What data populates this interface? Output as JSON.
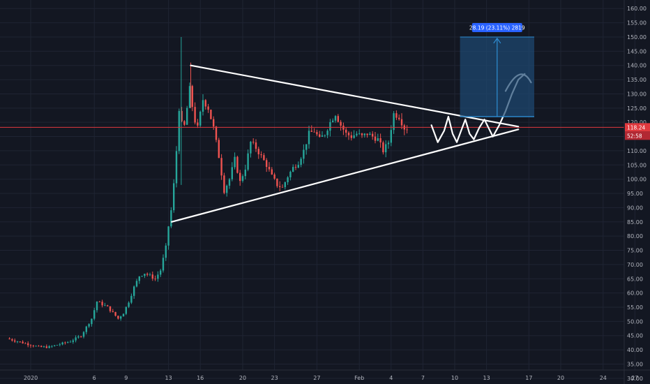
{
  "colors": {
    "background": "#131722",
    "grid": "#1f2433",
    "up": "#26a69a",
    "down": "#ef5350",
    "drawing": "#ffffff",
    "target_box": "#1e4a73",
    "target_line": "#2e8fd6",
    "price_line": "#e0393e"
  },
  "chart_data": {
    "type": "candlestick",
    "title": "",
    "xlabel": "",
    "ylabel": "",
    "ylim": [
      28,
      163
    ],
    "y_ticks": [
      "160.00",
      "155.00",
      "150.00",
      "145.00",
      "140.00",
      "135.00",
      "130.00",
      "125.00",
      "120.00",
      "115.00",
      "110.00",
      "105.00",
      "100.00",
      "95.00",
      "90.00",
      "85.00",
      "80.00",
      "75.00",
      "70.00",
      "65.00",
      "60.00",
      "55.00",
      "50.00",
      "45.00",
      "40.00",
      "35.00",
      "30.00"
    ],
    "x_ticks": [
      "2020",
      "6",
      "9",
      "13",
      "16",
      "20",
      "23",
      "27",
      "Feb",
      "4",
      "7",
      "10",
      "13",
      "17",
      "20",
      "24",
      "27"
    ],
    "price_points": [
      {
        "d": -2,
        "p": 44
      },
      {
        "d": 0,
        "p": 42
      },
      {
        "d": 1,
        "p": 41
      },
      {
        "d": 2,
        "p": 41
      },
      {
        "d": 3,
        "p": 42
      },
      {
        "d": 4,
        "p": 43
      },
      {
        "d": 5,
        "p": 45
      },
      {
        "d": 6,
        "p": 51
      },
      {
        "d": 6.5,
        "p": 57
      },
      {
        "d": 7,
        "p": 56
      },
      {
        "d": 7.5,
        "p": 55
      },
      {
        "d": 8,
        "p": 53
      },
      {
        "d": 8.5,
        "p": 51
      },
      {
        "d": 9,
        "p": 53
      },
      {
        "d": 9.5,
        "p": 57
      },
      {
        "d": 10,
        "p": 62
      },
      {
        "d": 10.5,
        "p": 66
      },
      {
        "d": 11,
        "p": 67
      },
      {
        "d": 11.5,
        "p": 66
      },
      {
        "d": 12,
        "p": 65
      },
      {
        "d": 12.5,
        "p": 68
      },
      {
        "d": 13,
        "p": 76
      },
      {
        "d": 13.3,
        "p": 85
      },
      {
        "d": 13.6,
        "p": 91
      },
      {
        "d": 14,
        "p": 110
      },
      {
        "d": 14.3,
        "p": 128
      },
      {
        "d": 14.6,
        "p": 115
      },
      {
        "d": 15,
        "p": 125
      },
      {
        "d": 15.3,
        "p": 133
      },
      {
        "d": 15.6,
        "p": 122
      },
      {
        "d": 16,
        "p": 118
      },
      {
        "d": 16.5,
        "p": 128
      },
      {
        "d": 17,
        "p": 125
      },
      {
        "d": 17.5,
        "p": 118
      },
      {
        "d": 18,
        "p": 108
      },
      {
        "d": 18.5,
        "p": 96
      },
      {
        "d": 19,
        "p": 100
      },
      {
        "d": 19.5,
        "p": 107
      },
      {
        "d": 20,
        "p": 99
      },
      {
        "d": 20.5,
        "p": 104
      },
      {
        "d": 21,
        "p": 113
      },
      {
        "d": 21.5,
        "p": 111
      },
      {
        "d": 22,
        "p": 108
      },
      {
        "d": 22.5,
        "p": 105
      },
      {
        "d": 23,
        "p": 101
      },
      {
        "d": 23.5,
        "p": 98
      },
      {
        "d": 24,
        "p": 97
      },
      {
        "d": 24.5,
        "p": 101
      },
      {
        "d": 25,
        "p": 104
      },
      {
        "d": 25.5,
        "p": 106
      },
      {
        "d": 26,
        "p": 110
      },
      {
        "d": 26.5,
        "p": 116
      },
      {
        "d": 27,
        "p": 117
      },
      {
        "d": 27.5,
        "p": 114
      },
      {
        "d": 28,
        "p": 116
      },
      {
        "d": 28.5,
        "p": 120
      },
      {
        "d": 29,
        "p": 123
      },
      {
        "d": 29.5,
        "p": 119
      },
      {
        "d": 30,
        "p": 116
      },
      {
        "d": 30.5,
        "p": 115
      },
      {
        "d": 31,
        "p": 116
      },
      {
        "d": 31.5,
        "p": 115
      },
      {
        "d": 32,
        "p": 116
      },
      {
        "d": 32.5,
        "p": 115
      },
      {
        "d": 33,
        "p": 114
      },
      {
        "d": 33.5,
        "p": 110
      },
      {
        "d": 34,
        "p": 113
      },
      {
        "d": 34.5,
        "p": 123
      },
      {
        "d": 35,
        "p": 122
      },
      {
        "d": 35.5,
        "p": 118
      }
    ],
    "current_price": {
      "label": "118.24",
      "countdown": "52:58",
      "value": 118.24
    },
    "trendlines": [
      {
        "x1": 15.1,
        "y1": 140,
        "x2": 46,
        "y2": 118.5
      },
      {
        "x1": 13.3,
        "y1": 85,
        "x2": 46,
        "y2": 117.5
      }
    ],
    "target": {
      "label": "28.19 (23.11%) 2819",
      "x_start": 40.5,
      "x_end": 47.5,
      "y_bottom": 122,
      "y_top": 150
    }
  }
}
